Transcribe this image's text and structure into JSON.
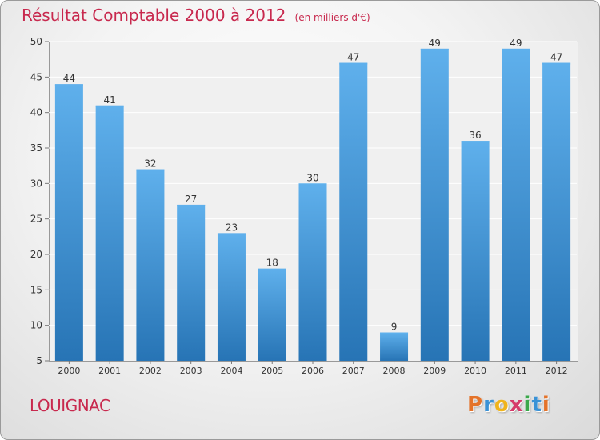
{
  "header": {
    "title": "Résultat Comptable 2000 à 2012",
    "unit": "(en milliers d'€)"
  },
  "footer": {
    "commune": "LOUIGNAC",
    "logo_letters": [
      "P",
      "r",
      "o",
      "x",
      "i",
      "t",
      "i"
    ],
    "logo_colors": [
      "#e4732a",
      "#3a92d6",
      "#f0b41c",
      "#d63a6a",
      "#3aa84a",
      "#3a92d6",
      "#e4732a"
    ]
  },
  "colors": {
    "bar": "#4a9fe0",
    "bar_dark": "#2774b5",
    "bar_light": "#5fb0ec",
    "title": "#c8294e"
  },
  "chart_data": {
    "type": "bar",
    "categories": [
      "2000",
      "2001",
      "2002",
      "2003",
      "2004",
      "2005",
      "2006",
      "2007",
      "2008",
      "2009",
      "2010",
      "2011",
      "2012"
    ],
    "values": [
      44,
      41,
      32,
      27,
      23,
      18,
      30,
      47,
      9,
      49,
      36,
      49,
      47
    ],
    "title": "Résultat Comptable 2000 à 2012",
    "subtitle": "(en milliers d'€)",
    "xlabel": "",
    "ylabel": "",
    "ylim": [
      5,
      50
    ],
    "yticks": [
      5,
      10,
      15,
      20,
      25,
      30,
      35,
      40,
      45,
      50
    ],
    "grid": true,
    "data_labels": true
  }
}
